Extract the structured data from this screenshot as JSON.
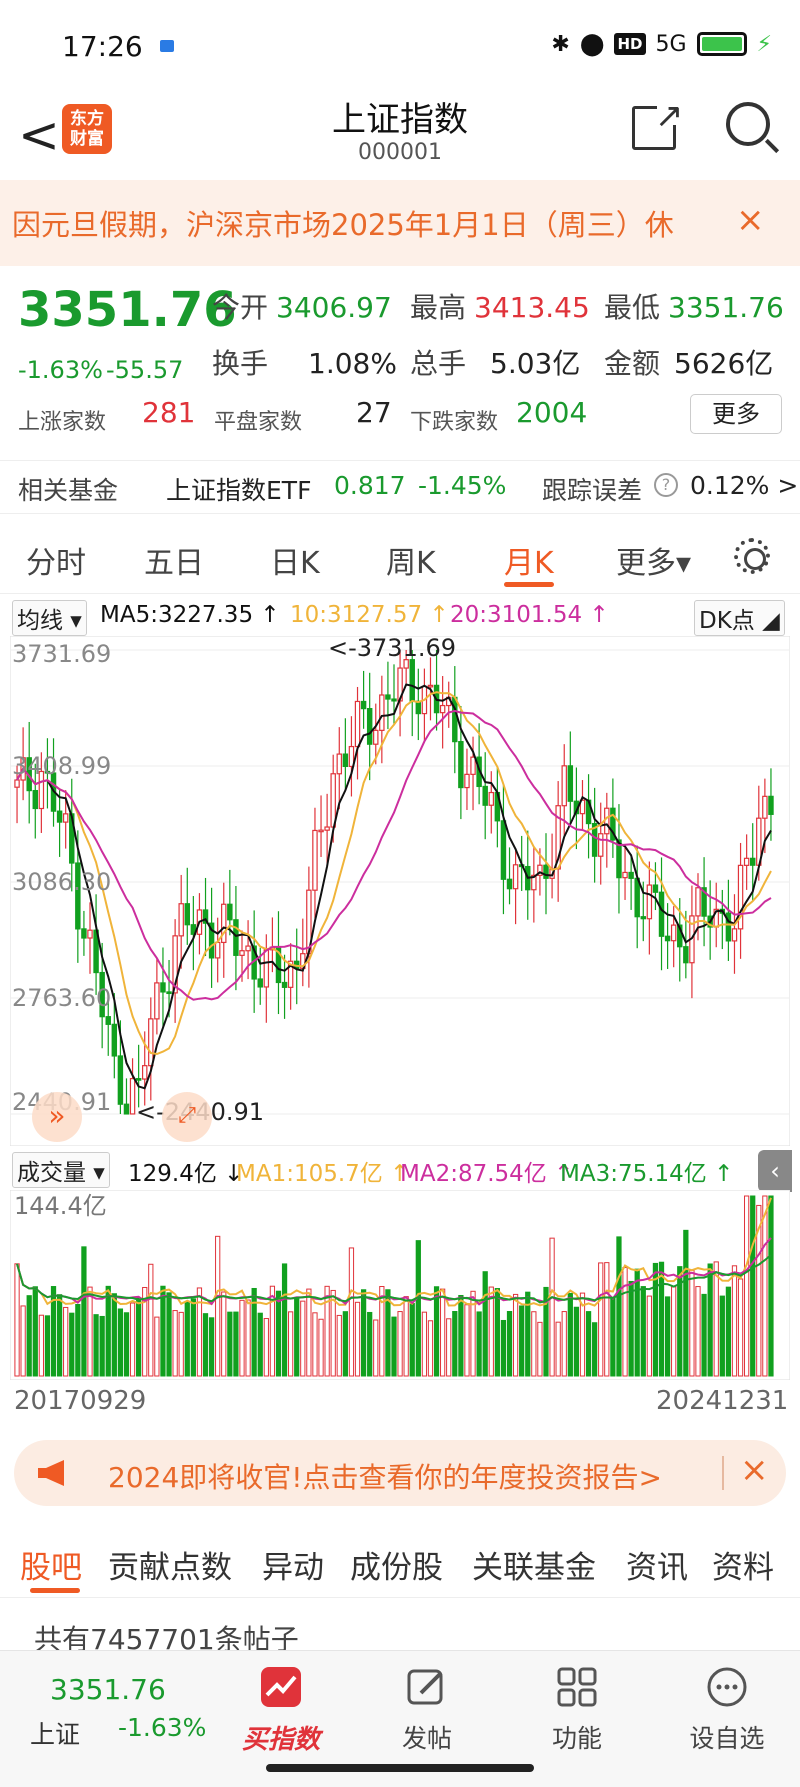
{
  "status": {
    "time": "17:26",
    "network": "5G"
  },
  "header": {
    "title": "上证指数",
    "code": "000001",
    "logo_text": "东方财富",
    "back_label": "<"
  },
  "notice": {
    "text": "因元旦假期，沪深京市场2025年1月1日（周三）休",
    "close": "×"
  },
  "quote": {
    "price": "3351.76",
    "pct": "-1.63%",
    "change": "-55.57",
    "open_label": "今开",
    "open": "3406.97",
    "high_label": "最高",
    "high": "3413.45",
    "low_label": "最低",
    "low": "3351.76",
    "turnover_label": "换手",
    "turnover": "1.08%",
    "volume_label": "总手",
    "volume": "5.03亿",
    "amount_label": "金额",
    "amount": "5626亿",
    "up_label": "上涨家数",
    "up": "281",
    "flat_label": "平盘家数",
    "flat": "27",
    "down_label": "下跌家数",
    "down": "2004",
    "more": "更多"
  },
  "fund": {
    "label": "相关基金",
    "name": "上证指数ETF",
    "price": "0.817",
    "pct": "-1.45%",
    "track_label": "跟踪误差",
    "track_value": "0.12% >"
  },
  "tabs": [
    "分时",
    "五日",
    "日K",
    "周K",
    "月K",
    "更多▾"
  ],
  "ma": {
    "selector": "均线",
    "ma5": "MA5:3227.35 ↑",
    "ma10": "10:3127.57 ↑",
    "ma20": "20:3101.54 ↑",
    "dk": "DK点"
  },
  "vol": {
    "selector": "成交量",
    "value": "129.4亿 ↓",
    "ma1": "MA1:105.7亿 ↑",
    "ma2": "MA2:87.54亿 ↑",
    "ma3": "MA3:75.14亿 ↑"
  },
  "chart_data": {
    "type": "candlestick",
    "y_ticks": [
      "3731.69",
      "3408.99",
      "3086.30",
      "2763.60",
      "2440.91"
    ],
    "ylim": [
      2440.91,
      3731.69
    ],
    "max_label": "<-3731.69",
    "min_label": "<-2440.91",
    "vol_max_label": "144.4亿",
    "vol_ylim": [
      0,
      144.4
    ],
    "start_date": "20170929",
    "end_date": "20241231",
    "colors": {
      "up": "#e0333a",
      "down": "#11a01f",
      "ma5": "#111111",
      "ma10": "#f0b43a",
      "ma20": "#cc2e9e"
    }
  },
  "promo": {
    "text": "2024即将收官!点击查看你的年度投资报告>",
    "close": "×"
  },
  "subtabs": [
    "股吧",
    "贡献点数",
    "异动",
    "成份股",
    "关联基金",
    "资讯",
    "资料"
  ],
  "posts": {
    "text": "共有7457701条帖子"
  },
  "bottomnav": {
    "price": "3351.76",
    "name": "上证",
    "pct": "-1.63%",
    "buy": "买指数",
    "post": "发帖",
    "func": "功能",
    "fav": "设自选"
  }
}
